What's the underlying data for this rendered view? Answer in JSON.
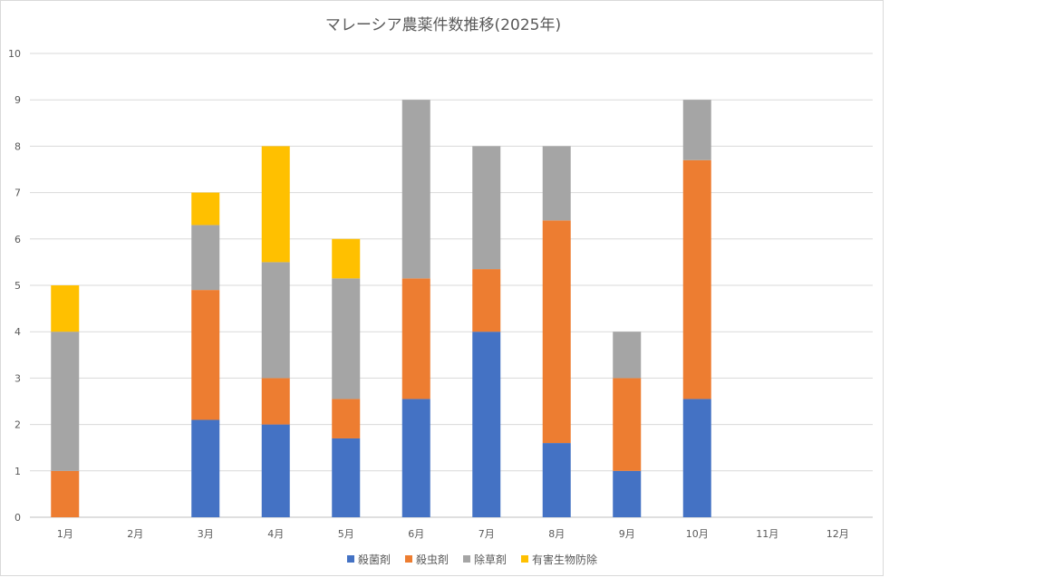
{
  "chart_data": {
    "type": "bar",
    "stacked": true,
    "title": "マレーシア農薬件数推移(2025年)",
    "xlabel": "",
    "ylabel": "",
    "ylim": [
      0,
      10
    ],
    "yticks": [
      "0",
      "1",
      "2",
      "3",
      "4",
      "5",
      "6",
      "7",
      "8",
      "9",
      "10"
    ],
    "grid": true,
    "legend_position": "bottom",
    "categories": [
      "1月",
      "2月",
      "3月",
      "4月",
      "5月",
      "6月",
      "7月",
      "8月",
      "9月",
      "10月",
      "11月",
      "12月"
    ],
    "series": [
      {
        "name": "殺菌剤",
        "color": "#4472c4",
        "values": [
          0,
          0,
          2.1,
          2,
          1.7,
          2.55,
          4,
          1.6,
          1,
          2.55,
          0,
          0
        ]
      },
      {
        "name": "殺虫剤",
        "color": "#ed7d31",
        "values": [
          1,
          0,
          2.8,
          1,
          0.85,
          2.6,
          1.35,
          4.8,
          2,
          5.15,
          0,
          0
        ]
      },
      {
        "name": "除草剤",
        "color": "#a5a5a5",
        "values": [
          3,
          0,
          1.4,
          2.5,
          2.6,
          3.85,
          2.65,
          1.6,
          1,
          1.3,
          0,
          0
        ]
      },
      {
        "name": "有害生物防除",
        "color": "#ffc000",
        "values": [
          1,
          0,
          0.7,
          2.5,
          0.85,
          0,
          0,
          0,
          0,
          0,
          0,
          0
        ]
      }
    ]
  }
}
